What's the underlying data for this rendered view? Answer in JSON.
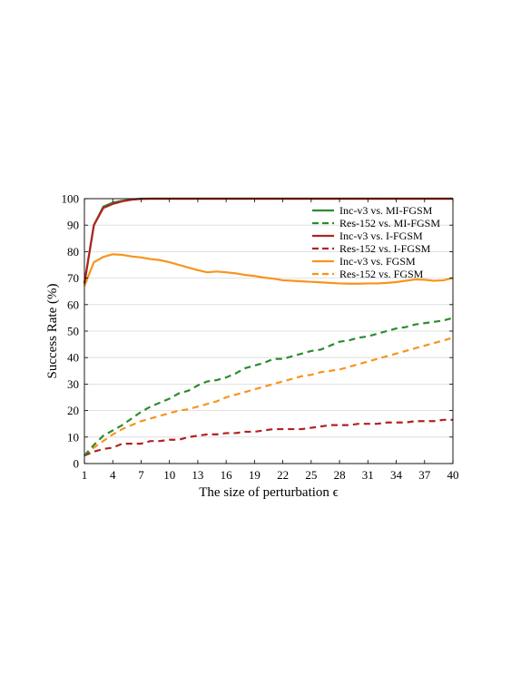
{
  "chart_data": {
    "type": "line",
    "title": "",
    "xlabel": "The size of perturbation ϵ",
    "ylabel": "Success Rate (%)",
    "xlim": [
      1,
      40
    ],
    "ylim": [
      0,
      100
    ],
    "x_ticks": [
      1,
      4,
      7,
      10,
      13,
      16,
      19,
      22,
      25,
      28,
      31,
      34,
      37,
      40
    ],
    "y_ticks": [
      0,
      10,
      20,
      30,
      40,
      50,
      60,
      70,
      80,
      90,
      100
    ],
    "grid": true,
    "legend_position": "top-right",
    "x": [
      1,
      2,
      3,
      4,
      5,
      6,
      7,
      8,
      9,
      10,
      11,
      12,
      13,
      14,
      15,
      16,
      17,
      18,
      19,
      20,
      21,
      22,
      23,
      24,
      25,
      26,
      27,
      28,
      29,
      30,
      31,
      32,
      33,
      34,
      35,
      36,
      37,
      38,
      39,
      40
    ],
    "series": [
      {
        "name": "Inc-v3 vs. MI-FGSM",
        "color": "#2e8b2e",
        "dashed": false,
        "values": [
          68,
          90,
          97,
          98.5,
          99.2,
          99.7,
          100,
          100,
          100,
          100,
          100,
          100,
          100,
          100,
          100,
          100,
          100,
          100,
          100,
          100,
          100,
          100,
          100,
          100,
          100,
          100,
          100,
          100,
          100,
          100,
          100,
          100,
          100,
          100,
          100,
          100,
          100,
          100,
          100,
          100
        ]
      },
      {
        "name": "Res-152 vs. MI-FGSM",
        "color": "#2e8b2e",
        "dashed": true,
        "values": [
          3,
          7,
          10.5,
          12.5,
          14.5,
          17,
          19.5,
          21.5,
          23,
          24.5,
          26.5,
          27.5,
          29.5,
          31,
          31.5,
          32.5,
          34,
          36,
          37,
          38,
          39.5,
          39.5,
          40.5,
          41.5,
          42.5,
          43,
          44.5,
          46,
          46.5,
          47.5,
          48,
          49,
          50,
          51,
          51.5,
          52.5,
          53,
          53.5,
          54,
          55
        ]
      },
      {
        "name": "Inc-v3 vs. I-FGSM",
        "color": "#b22222",
        "dashed": false,
        "values": [
          68,
          90,
          96.5,
          98,
          99,
          99.6,
          99.9,
          100,
          100,
          100,
          100,
          100,
          100,
          100,
          100,
          100,
          100,
          100,
          100,
          100,
          100,
          100,
          100,
          100,
          100,
          100,
          100,
          100,
          100,
          100,
          100,
          100,
          100,
          100,
          100,
          100,
          100,
          100,
          100,
          100
        ]
      },
      {
        "name": "Res-152 vs. I-FGSM",
        "color": "#b22222",
        "dashed": true,
        "values": [
          3,
          4.5,
          5.5,
          6,
          7.5,
          7.5,
          7.5,
          8.5,
          8.5,
          9,
          9,
          10,
          10.5,
          11,
          11,
          11.5,
          11.5,
          12,
          12,
          12.5,
          13,
          13,
          13,
          13,
          13.5,
          14,
          14.5,
          14.5,
          14.5,
          15,
          15,
          15,
          15.5,
          15.5,
          15.5,
          16,
          16,
          16,
          16.5,
          16.5
        ]
      },
      {
        "name": "Inc-v3 vs. FGSM",
        "color": "#f7941d",
        "dashed": false,
        "values": [
          67,
          76,
          78,
          79,
          78.8,
          78.2,
          77.8,
          77.2,
          76.8,
          76,
          75,
          74,
          73,
          72.2,
          72.5,
          72.2,
          71.8,
          71.2,
          70.8,
          70.2,
          69.8,
          69.2,
          69,
          68.8,
          68.6,
          68.4,
          68.2,
          68,
          67.9,
          67.9,
          68,
          68,
          68.2,
          68.5,
          69,
          69.5,
          69.4,
          69,
          69.2,
          70
        ]
      },
      {
        "name": "Res-152 vs. FGSM",
        "color": "#f7941d",
        "dashed": true,
        "values": [
          3,
          6,
          8.5,
          11,
          13,
          14.5,
          16,
          17,
          18,
          19,
          20,
          20.5,
          21.5,
          22.5,
          23.5,
          25,
          26,
          27,
          28,
          29,
          30,
          31,
          32,
          33,
          33.5,
          34.5,
          35,
          35.5,
          36.5,
          37.5,
          38.5,
          39.5,
          40.5,
          41.5,
          42.5,
          43.5,
          44.5,
          45.5,
          46.5,
          47.5
        ]
      }
    ]
  }
}
